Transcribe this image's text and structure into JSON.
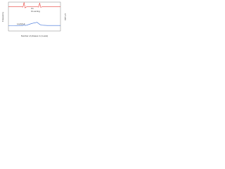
{
  "chart_data": {
    "type": "line",
    "x_label": "Number of phases in (1-axis)",
    "y_label": "Frequency",
    "y2_label": "L/I ratio",
    "annotations": [
      "Ox",
      "Ox arcing",
      "Lo(A)(U)"
    ],
    "x": [
      0,
      10,
      20,
      25,
      28,
      30,
      32,
      35,
      45,
      55,
      58,
      60,
      62,
      65,
      75,
      90,
      100
    ],
    "xlim": [
      0,
      100
    ],
    "ylim": [
      0,
      100
    ],
    "series": [
      {
        "name": "Ox",
        "color": "#e8403a",
        "values": [
          84,
          84,
          84,
          84,
          83,
          99,
          80,
          84,
          84,
          84,
          83,
          97,
          82,
          84,
          84,
          84,
          84
        ]
      },
      {
        "name": "Lo",
        "color": "#3a6fd8",
        "values": [
          18,
          18,
          19,
          19,
          19,
          22,
          19,
          20,
          26,
          30,
          26,
          23,
          21,
          20,
          19,
          19,
          19
        ]
      }
    ]
  }
}
